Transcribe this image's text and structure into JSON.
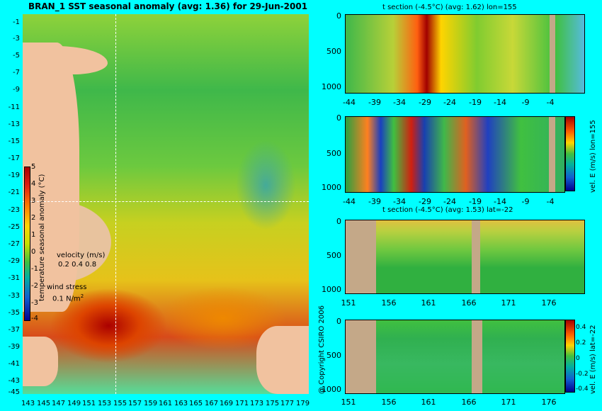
{
  "map": {
    "title": "BRAN_1 SST seasonal anomaly (avg: 1.36) for 29-Jun-2001",
    "y_ticks": [
      "-1",
      "-3",
      "-5",
      "-7",
      "-9",
      "-11",
      "-13",
      "-15",
      "-17",
      "-19",
      "-21",
      "-23",
      "-25",
      "-27",
      "-29",
      "-31",
      "-33",
      "-35",
      "-37",
      "-39",
      "-41",
      "-43",
      "-45"
    ],
    "x_ticks": [
      "143",
      "145",
      "147",
      "149",
      "151",
      "153",
      "155",
      "157",
      "159",
      "161",
      "163",
      "165",
      "167",
      "169",
      "171",
      "173",
      "175",
      "177",
      "179"
    ],
    "colorbar": {
      "label": "temperature seasonal anomaly (°C)",
      "ticks": [
        "5",
        "4",
        "3",
        "2",
        "1",
        "0",
        "-1",
        "-2",
        "-3",
        "-4"
      ]
    },
    "velocity_label": "velocity (m/s)",
    "velocity_scale": "0.2 0.4 0.8",
    "wind_label": "wind stress",
    "wind_scale": "0.1 N/m",
    "wind_exp": "2"
  },
  "panels": [
    {
      "title": "t section (-4.5°C) (avg: 1.62) lon=155",
      "x_ticks": [
        "-44",
        "-39",
        "-34",
        "-29",
        "-24",
        "-19",
        "-14",
        "-9",
        "-4"
      ],
      "y_ticks": [
        "0",
        "500",
        "1000"
      ]
    },
    {
      "title": "",
      "x_ticks": [
        "-44",
        "-39",
        "-34",
        "-29",
        "-24",
        "-19",
        "-14",
        "-9",
        "-4"
      ],
      "y_ticks": [
        "0",
        "500",
        "1000"
      ],
      "colorbar_label": "vel. E (m/s) lon=155",
      "colorbar_ticks": [
        "",
        "",
        ""
      ]
    },
    {
      "title": "t section (-4.5°C) (avg: 1.53) lat=-22",
      "x_ticks": [
        "151",
        "156",
        "161",
        "166",
        "171",
        "176"
      ],
      "y_ticks": [
        "0",
        "500",
        "1000"
      ]
    },
    {
      "title": "",
      "x_ticks": [
        "151",
        "156",
        "161",
        "166",
        "171",
        "176"
      ],
      "y_ticks": [
        "0",
        "500",
        "1000"
      ],
      "colorbar_label": "vel. E (m/s) lat=-22",
      "colorbar_ticks": [
        "0.4",
        "0.2",
        "0",
        "-0.2",
        "-0.4"
      ]
    }
  ],
  "copyright": "@ Copyright CSIRO 2006"
}
